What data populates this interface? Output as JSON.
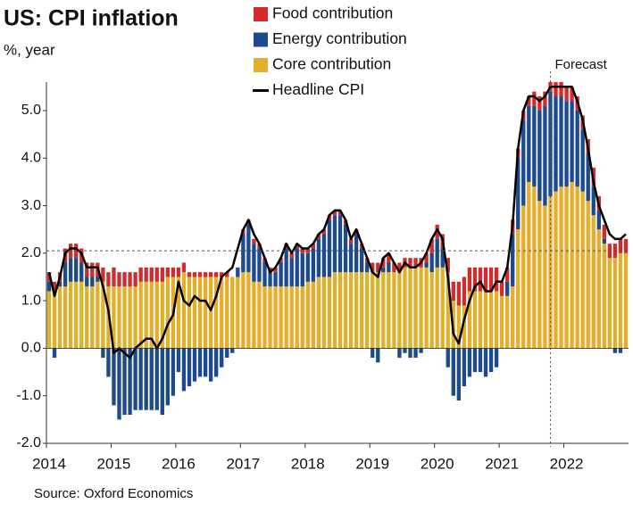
{
  "chart_data": {
    "type": "bar",
    "stacked": true,
    "title": "US: CPI inflation",
    "subtitle": "%, year",
    "source": "Source: Oxford Economics",
    "categories": [
      "2014",
      null,
      null,
      null,
      null,
      null,
      null,
      null,
      null,
      null,
      null,
      null,
      "2015",
      null,
      null,
      null,
      null,
      null,
      null,
      null,
      null,
      null,
      null,
      null,
      "2016",
      null,
      null,
      null,
      null,
      null,
      null,
      null,
      null,
      null,
      null,
      null,
      "2017",
      null,
      null,
      null,
      null,
      null,
      null,
      null,
      null,
      null,
      null,
      null,
      "2018",
      null,
      null,
      null,
      null,
      null,
      null,
      null,
      null,
      null,
      null,
      null,
      "2019",
      null,
      null,
      null,
      null,
      null,
      null,
      null,
      null,
      null,
      null,
      null,
      "2020",
      null,
      null,
      null,
      null,
      null,
      null,
      null,
      null,
      null,
      null,
      null,
      "2021",
      null,
      null,
      null,
      null,
      null,
      null,
      null,
      null,
      null,
      null,
      null,
      "2022",
      null,
      null,
      null,
      null,
      null,
      null,
      null,
      null,
      null,
      null,
      null
    ],
    "series": [
      {
        "name": "Food contribution",
        "type": "bar",
        "color": "#d12b2b",
        "values": [
          0.2,
          0.2,
          0.2,
          0.3,
          0.3,
          0.3,
          0.3,
          0.3,
          0.3,
          0.3,
          0.3,
          0.3,
          0.4,
          0.3,
          0.3,
          0.3,
          0.3,
          0.3,
          0.3,
          0.3,
          0.3,
          0.3,
          0.2,
          0.2,
          0.2,
          0.2,
          0.1,
          0.1,
          0.1,
          0.1,
          0.1,
          0.1,
          0.1,
          0.1,
          0.0,
          0.0,
          0.1,
          0.1,
          0.1,
          0.1,
          0.1,
          0.1,
          0.1,
          0.1,
          0.1,
          0.1,
          0.1,
          0.1,
          0.1,
          0.1,
          0.1,
          0.1,
          0.1,
          0.1,
          0.1,
          0.1,
          0.1,
          0.1,
          0.1,
          0.1,
          0.2,
          0.2,
          0.2,
          0.2,
          0.2,
          0.2,
          0.2,
          0.2,
          0.2,
          0.2,
          0.2,
          0.3,
          0.3,
          0.3,
          0.3,
          0.4,
          0.5,
          0.6,
          0.5,
          0.5,
          0.5,
          0.5,
          0.5,
          0.5,
          0.3,
          0.3,
          0.3,
          0.2,
          0.2,
          0.2,
          0.3,
          0.3,
          0.3,
          0.2,
          0.3,
          0.3,
          0.3,
          0.3,
          0.3,
          0.3,
          0.3,
          0.4,
          0.3,
          0.3,
          0.3,
          0.3,
          0.3,
          0.3
        ]
      },
      {
        "name": "Energy contribution",
        "type": "bar",
        "color": "#1c4a8a",
        "values": [
          0.2,
          -0.2,
          0.1,
          0.5,
          0.5,
          0.5,
          0.4,
          0.2,
          0.2,
          0.1,
          -0.2,
          -0.6,
          -1.2,
          -1.5,
          -1.4,
          -1.4,
          -1.3,
          -1.3,
          -1.3,
          -1.3,
          -1.3,
          -1.4,
          -1.2,
          -1.0,
          -0.5,
          -0.9,
          -0.8,
          -0.7,
          -0.6,
          -0.6,
          -0.7,
          -0.6,
          -0.4,
          -0.2,
          -0.1,
          0.2,
          0.8,
          1.0,
          0.8,
          0.7,
          0.5,
          0.3,
          0.3,
          0.5,
          0.8,
          0.6,
          0.8,
          0.7,
          0.6,
          0.7,
          0.8,
          0.9,
          1.2,
          1.2,
          1.2,
          1.0,
          0.6,
          0.8,
          0.5,
          0.2,
          -0.2,
          -0.3,
          0.1,
          0.2,
          0.0,
          -0.2,
          -0.1,
          -0.2,
          -0.2,
          -0.1,
          0.1,
          0.4,
          0.6,
          0.4,
          -0.4,
          -1.0,
          -1.1,
          -0.8,
          -0.6,
          -0.5,
          -0.5,
          -0.6,
          -0.5,
          -0.4,
          0.0,
          0.3,
          1.1,
          1.5,
          1.8,
          1.6,
          1.7,
          1.9,
          2.1,
          2.2,
          2.0,
          1.9,
          1.8,
          1.7,
          1.6,
          1.3,
          1.0,
          0.6,
          0.4,
          0.1,
          0.0,
          -0.1,
          -0.1,
          0.0
        ]
      },
      {
        "name": "Core contribution",
        "type": "bar",
        "color": "#e2b02c",
        "values": [
          1.2,
          1.2,
          1.3,
          1.3,
          1.4,
          1.4,
          1.4,
          1.3,
          1.3,
          1.4,
          1.4,
          1.3,
          1.3,
          1.3,
          1.3,
          1.3,
          1.3,
          1.4,
          1.4,
          1.4,
          1.4,
          1.4,
          1.5,
          1.5,
          1.5,
          1.6,
          1.5,
          1.5,
          1.5,
          1.5,
          1.5,
          1.5,
          1.5,
          1.5,
          1.5,
          1.5,
          1.6,
          1.6,
          1.4,
          1.4,
          1.3,
          1.3,
          1.3,
          1.3,
          1.3,
          1.3,
          1.3,
          1.3,
          1.4,
          1.4,
          1.5,
          1.5,
          1.5,
          1.6,
          1.6,
          1.6,
          1.6,
          1.6,
          1.6,
          1.6,
          1.6,
          1.6,
          1.6,
          1.6,
          1.6,
          1.6,
          1.7,
          1.7,
          1.7,
          1.7,
          1.7,
          1.6,
          1.7,
          1.7,
          1.6,
          1.0,
          0.9,
          0.9,
          1.2,
          1.2,
          1.2,
          1.2,
          1.2,
          1.2,
          1.1,
          1.1,
          1.3,
          2.5,
          3.0,
          3.5,
          3.4,
          3.1,
          3.0,
          3.2,
          3.3,
          3.4,
          3.4,
          3.5,
          3.4,
          3.3,
          3.1,
          2.8,
          2.5,
          2.2,
          1.9,
          1.9,
          2.0,
          2.0
        ]
      },
      {
        "name": "Headline CPI",
        "type": "line",
        "color": "#000000",
        "values": [
          1.6,
          1.1,
          1.5,
          2.0,
          2.1,
          2.1,
          2.0,
          1.7,
          1.7,
          1.7,
          1.3,
          0.8,
          -0.1,
          0.0,
          -0.1,
          -0.2,
          0.0,
          0.1,
          0.2,
          0.2,
          0.0,
          0.2,
          0.5,
          0.7,
          1.4,
          1.0,
          0.9,
          1.1,
          1.0,
          1.0,
          0.8,
          1.1,
          1.5,
          1.6,
          1.7,
          2.1,
          2.5,
          2.7,
          2.4,
          2.2,
          1.9,
          1.6,
          1.7,
          1.9,
          2.2,
          2.0,
          2.2,
          2.1,
          2.1,
          2.2,
          2.4,
          2.5,
          2.8,
          2.9,
          2.9,
          2.7,
          2.3,
          2.5,
          2.2,
          1.9,
          1.6,
          1.5,
          1.9,
          2.0,
          1.8,
          1.6,
          1.8,
          1.7,
          1.7,
          1.8,
          2.0,
          2.3,
          2.5,
          2.3,
          1.5,
          0.3,
          0.1,
          0.6,
          1.0,
          1.3,
          1.4,
          1.2,
          1.2,
          1.4,
          1.4,
          1.7,
          2.6,
          4.2,
          5.0,
          5.3,
          5.3,
          5.2,
          5.3,
          5.5,
          5.5,
          5.5,
          5.5,
          5.5,
          5.2,
          4.8,
          4.2,
          3.5,
          3.0,
          2.7,
          2.4,
          2.3,
          2.3,
          2.4
        ]
      }
    ],
    "ylim": [
      -2,
      5.6
    ],
    "yticks": [
      {
        "value": -2,
        "label": "-2.0"
      },
      {
        "value": -1,
        "label": "-1.0"
      },
      {
        "value": 0,
        "label": "0.0"
      },
      {
        "value": 1,
        "label": "1.0"
      },
      {
        "value": 2,
        "label": "2.0"
      },
      {
        "value": 3,
        "label": "3.0"
      },
      {
        "value": 4,
        "label": "4.0"
      },
      {
        "value": 5,
        "label": "5.0"
      }
    ],
    "reference_line": 2.05,
    "annotation": {
      "text": "Forecast",
      "index": 93
    },
    "grid": false
  }
}
